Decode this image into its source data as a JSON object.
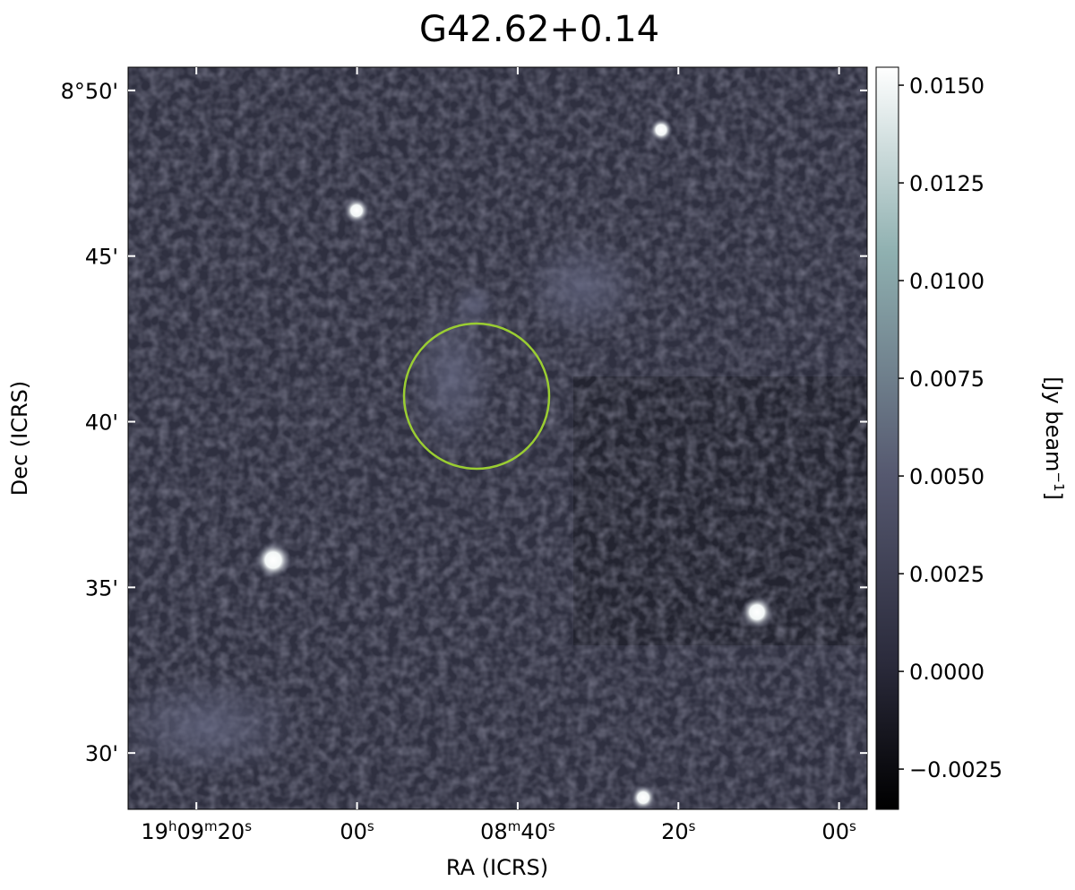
{
  "chart_data": {
    "type": "image",
    "title": "G42.62+0.14",
    "x_label": "RA (ICRS)",
    "y_label": "Dec (ICRS)",
    "xlim": [
      88.5,
      -3.5
    ],
    "xticks": [
      {
        "value": 80,
        "label": [
          "19",
          "h",
          "09",
          "m",
          "20",
          "s"
        ]
      },
      {
        "value": 60,
        "label": [
          "00",
          "s"
        ]
      },
      {
        "value": 40,
        "label": [
          "08",
          "m",
          "40",
          "s"
        ]
      },
      {
        "value": 20,
        "label": [
          "20",
          "s"
        ]
      },
      {
        "value": 0,
        "label": [
          "00",
          "s"
        ]
      }
    ],
    "ylim": [
      28.3,
      50.7
    ],
    "yticks": [
      {
        "value": 50,
        "label": "8°50'"
      },
      {
        "value": 45,
        "label": "45'"
      },
      {
        "value": 40,
        "label": "40'"
      },
      {
        "value": 35,
        "label": "35'"
      },
      {
        "value": 30,
        "label": "30'"
      }
    ],
    "colorbar_label": [
      "[Jy beam",
      "−1",
      "]"
    ],
    "clim": [
      -0.00353,
      0.01546
    ],
    "cticks": [
      {
        "value": -0.0025,
        "label": "−0.0025"
      },
      {
        "value": 0,
        "label": "0.0000"
      },
      {
        "value": 0.0025,
        "label": "0.0025"
      },
      {
        "value": 0.005,
        "label": "0.0050"
      },
      {
        "value": 0.0075,
        "label": "0.0075"
      },
      {
        "value": 0.01,
        "label": "0.0100"
      },
      {
        "value": 0.0125,
        "label": "0.0125"
      },
      {
        "value": 0.015,
        "label": "0.0150"
      }
    ]
  }
}
